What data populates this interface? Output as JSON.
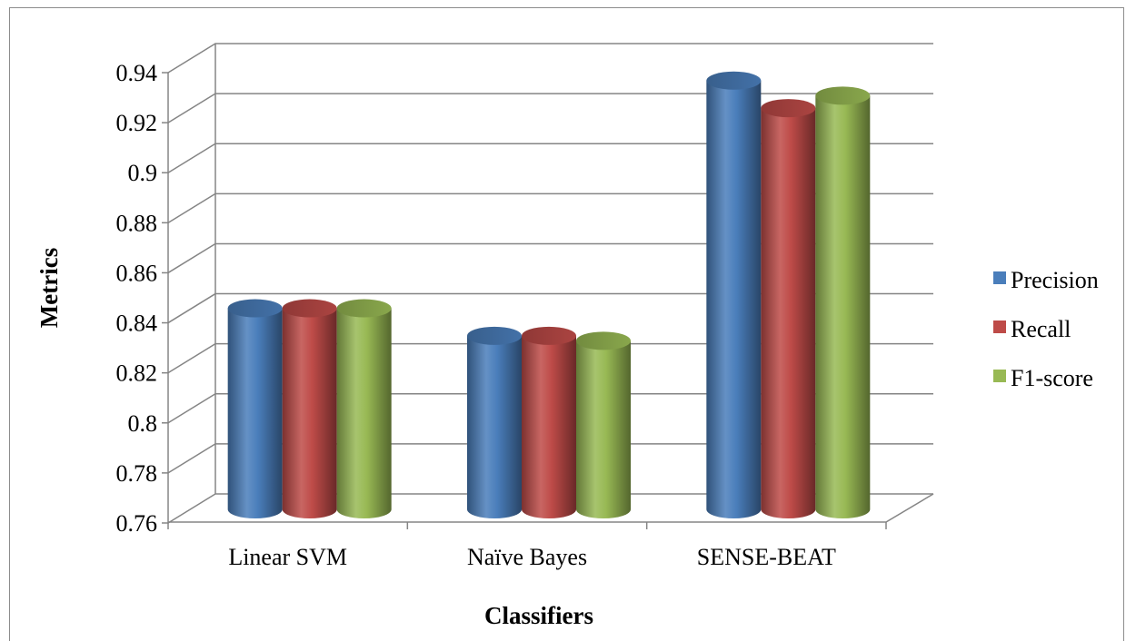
{
  "chart_data": {
    "type": "bar",
    "style": "3d-cylinder",
    "categories": [
      "Linear SVM",
      "Naïve Bayes",
      "SENSE-BEAT"
    ],
    "series": [
      {
        "name": "Precision",
        "color": "#4a7ebb",
        "values": [
          0.84,
          0.829,
          0.931
        ]
      },
      {
        "name": "Recall",
        "color": "#be4b48",
        "values": [
          0.84,
          0.829,
          0.92
        ]
      },
      {
        "name": "F1-score",
        "color": "#98b954",
        "values": [
          0.84,
          0.827,
          0.925
        ]
      }
    ],
    "xlabel": "Classifiers",
    "ylabel": "Metrics",
    "ylim": [
      0.76,
      0.94
    ],
    "yticks": [
      "0.76",
      "0.78",
      "0.8",
      "0.82",
      "0.84",
      "0.86",
      "0.88",
      "0.9",
      "0.92",
      "0.94"
    ],
    "grid": true,
    "legend_position": "right"
  }
}
